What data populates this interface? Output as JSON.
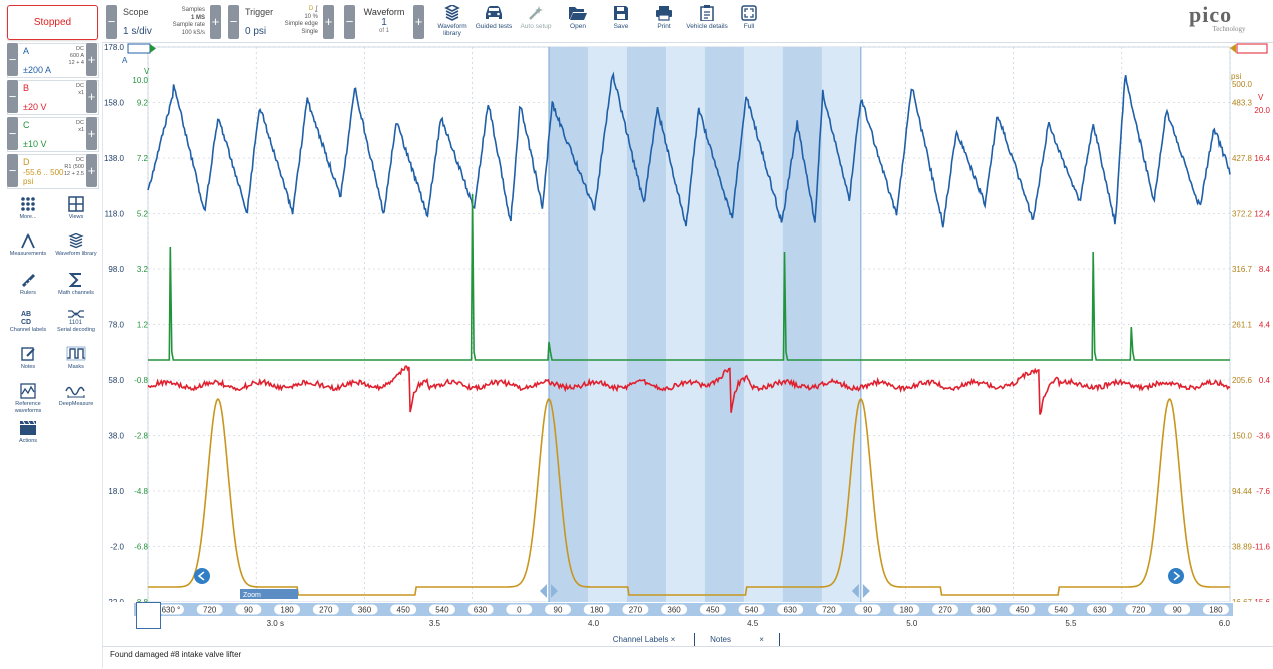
{
  "toolbar": {
    "status_label": "Stopped",
    "scope": {
      "title": "Scope",
      "value": "1 s/div",
      "samples_label": "Samples",
      "samples_value": "1 MS",
      "rate_label": "Sample rate",
      "rate_value": "100 kS/s"
    },
    "trigger": {
      "title": "Trigger",
      "value": "0 psi",
      "channel": "D",
      "level": "10 %",
      "mode": "Simple edge",
      "type": "Single"
    },
    "waveform": {
      "title": "Waveform",
      "value": "1",
      "of": "of 1"
    },
    "buttons": [
      {
        "label": "Waveform library",
        "icon": "waveform-library-icon"
      },
      {
        "label": "Guided tests",
        "icon": "car-icon"
      },
      {
        "label": "Auto setup",
        "icon": "wand-icon"
      },
      {
        "label": "Open",
        "icon": "folder-open-icon"
      },
      {
        "label": "Save",
        "icon": "save-icon"
      },
      {
        "label": "Print",
        "icon": "print-icon"
      },
      {
        "label": "Vehicle details",
        "icon": "clipboard-icon"
      },
      {
        "label": "Full",
        "icon": "fullscreen-icon"
      }
    ],
    "logo_word": "pico",
    "logo_sub": "Technology"
  },
  "channels": [
    {
      "name": "A",
      "range": "±200 A",
      "coupling": "DC",
      "probe": "600 A",
      "filter": "12 + 4",
      "color": "#1f5fa8"
    },
    {
      "name": "B",
      "range": "±20 V",
      "coupling": "DC",
      "probe": "x1",
      "filter": "",
      "color": "#e0202e"
    },
    {
      "name": "C",
      "range": "±10 V",
      "coupling": "DC",
      "probe": "x1",
      "filter": "",
      "color": "#22943c"
    },
    {
      "name": "D",
      "range": "-55.6 .. 500 psi",
      "coupling": "DC",
      "probe": "R1 (500",
      "filter": "12 + 2.5",
      "color": "#c8961e"
    }
  ],
  "tools": [
    {
      "label": "More...",
      "icon": "more-icon"
    },
    {
      "label": "Views",
      "icon": "views-icon"
    },
    {
      "label": "Measurements",
      "icon": "measurements-icon"
    },
    {
      "label": "Waveform library",
      "icon": "waveform-library-icon"
    },
    {
      "label": "Rulers",
      "icon": "ruler-icon"
    },
    {
      "label": "Math channels",
      "icon": "sigma-icon"
    },
    {
      "label": "Channel labels",
      "icon": "channel-labels-icon"
    },
    {
      "label": "Serial decoding",
      "icon": "serial-decoding-icon"
    },
    {
      "label": "Notes",
      "icon": "notes-icon"
    },
    {
      "label": "Masks",
      "icon": "masks-icon"
    },
    {
      "label": "Reference waveforms",
      "icon": "reference-waveforms-icon"
    },
    {
      "label": "DeepMeasure",
      "icon": "deepmeasure-icon"
    },
    {
      "label": "Actions",
      "icon": "actions-icon"
    }
  ],
  "axes": {
    "a_ticks": [
      "178.0",
      "158.0",
      "138.0",
      "118.0",
      "98.0",
      "78.0",
      "58.0",
      "38.0",
      "18.0",
      "-2.0",
      "-22.0"
    ],
    "a_unit": "A",
    "c_ticks": [
      "10.0",
      "9.2",
      "7.2",
      "5.2",
      "3.2",
      "1.2",
      "-0.8",
      "-2.8",
      "-4.8",
      "-6.8",
      "-8.8"
    ],
    "c_unit": "V",
    "d_ticks": [
      "500.0",
      "483.3",
      "427.8",
      "372.2",
      "316.7",
      "261.1",
      "205.6",
      "150.0",
      "94.44",
      "38.89",
      "-16.67"
    ],
    "d_unit": "psi",
    "b_ticks": [
      "20.0",
      "",
      "16.4",
      "12.4",
      "8.4",
      "4.4",
      "0.4",
      "-3.6",
      "-7.6",
      "-11.6",
      "-15.6"
    ],
    "b_unit": "V",
    "time_labels": [
      "3.0 s",
      "3.5",
      "4.0",
      "4.5",
      "5.0",
      "5.5",
      "6.0"
    ],
    "time_values": [
      3.0,
      3.5,
      4.0,
      4.5,
      5.0,
      5.5,
      6.0
    ],
    "crank_labels": [
      "630 °",
      "720",
      "90",
      "180",
      "270",
      "360",
      "450",
      "540",
      "630",
      "0",
      "90",
      "180",
      "270",
      "360",
      "450",
      "540",
      "630",
      "720",
      "90",
      "180",
      "270",
      "360",
      "450",
      "540",
      "630",
      "720",
      "90",
      "180"
    ]
  },
  "chart_data": {
    "type": "line",
    "x_range": [
      2.6,
      6.0
    ],
    "x_unit": "s",
    "zoom_label": "Zoom",
    "highlight_window": [
      3.86,
      4.84
    ],
    "series": [
      {
        "name": "A",
        "unit": "A",
        "color": "#1f5fa8",
        "peaks_x": [
          2.68,
          2.82,
          2.95,
          3.1,
          3.25,
          3.38,
          3.52,
          3.67,
          3.77,
          3.87,
          4.06,
          4.2,
          4.33,
          4.48,
          4.64,
          4.72,
          4.84,
          5.0,
          5.14,
          5.27,
          5.43,
          5.57,
          5.67,
          5.8,
          5.95
        ]
      },
      {
        "name": "C",
        "unit": "V",
        "color": "#22943c",
        "spike_x": [
          2.67,
          3.62,
          3.86,
          4.6,
          5.57,
          5.69
        ]
      },
      {
        "name": "B",
        "unit": "V",
        "color": "#e0202e",
        "dip_x": [
          3.42,
          4.43,
          5.4
        ]
      },
      {
        "name": "D",
        "unit": "psi",
        "color": "#c8961e",
        "peak_x": [
          2.82,
          3.86,
          4.84,
          5.81
        ]
      }
    ]
  },
  "bottom": {
    "tab_channel_labels": "Channel Labels",
    "tab_notes": "Notes",
    "note_text": "Found damaged #8 intake valve lifter"
  }
}
